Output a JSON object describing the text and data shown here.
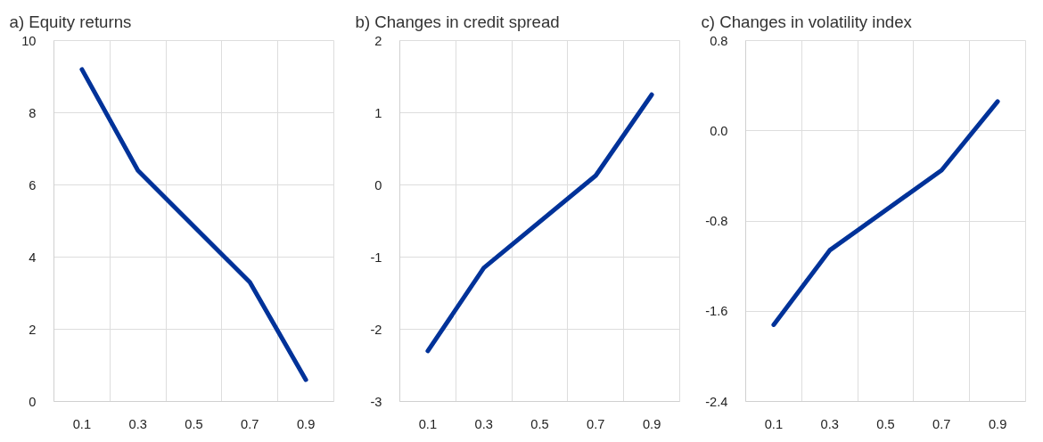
{
  "chart_data": [
    {
      "type": "line",
      "title": "a) Equity returns",
      "categories": [
        "0.1",
        "0.3",
        "0.5",
        "0.7",
        "0.9"
      ],
      "series": [
        {
          "color": "#003299",
          "x": [
            "0.1",
            "0.3",
            "0.7",
            "0.9"
          ],
          "values": [
            9.2,
            6.4,
            3.3,
            0.6
          ]
        }
      ],
      "ylim": [
        0,
        10
      ],
      "yticks": [
        0,
        2,
        4,
        6,
        8,
        10
      ],
      "grid": true,
      "marker": "none",
      "line_style": "solid"
    },
    {
      "type": "line",
      "title": "b) Changes in credit spread",
      "categories": [
        "0.1",
        "0.3",
        "0.5",
        "0.7",
        "0.9"
      ],
      "series": [
        {
          "color": "#003299",
          "x": [
            "0.1",
            "0.3",
            "0.7",
            "0.9"
          ],
          "values": [
            -2.3,
            -1.15,
            0.13,
            1.25
          ]
        }
      ],
      "ylim": [
        -3,
        2
      ],
      "yticks": [
        -3,
        -2,
        -1,
        0,
        1,
        2
      ],
      "grid": true,
      "marker": "none",
      "line_style": "solid"
    },
    {
      "type": "line",
      "title": "c) Changes in volatility index",
      "categories": [
        "0.1",
        "0.3",
        "0.5",
        "0.7",
        "0.9"
      ],
      "series": [
        {
          "color": "#003299",
          "x": [
            "0.1",
            "0.3",
            "0.7",
            "0.9"
          ],
          "values": [
            -1.72,
            -1.06,
            -0.35,
            0.26
          ]
        }
      ],
      "ylim": [
        -2.4,
        0.8
      ],
      "yticks": [
        {
          "value": -2.4,
          "label": "-2.4"
        },
        {
          "value": -1.6,
          "label": "-1.6"
        },
        {
          "value": -0.8,
          "label": "-0.8"
        },
        {
          "value": 0,
          "label": "0.0"
        },
        {
          "value": 0.8,
          "label": "0.8"
        }
      ],
      "grid": true,
      "marker": "none",
      "line_style": "solid"
    }
  ]
}
